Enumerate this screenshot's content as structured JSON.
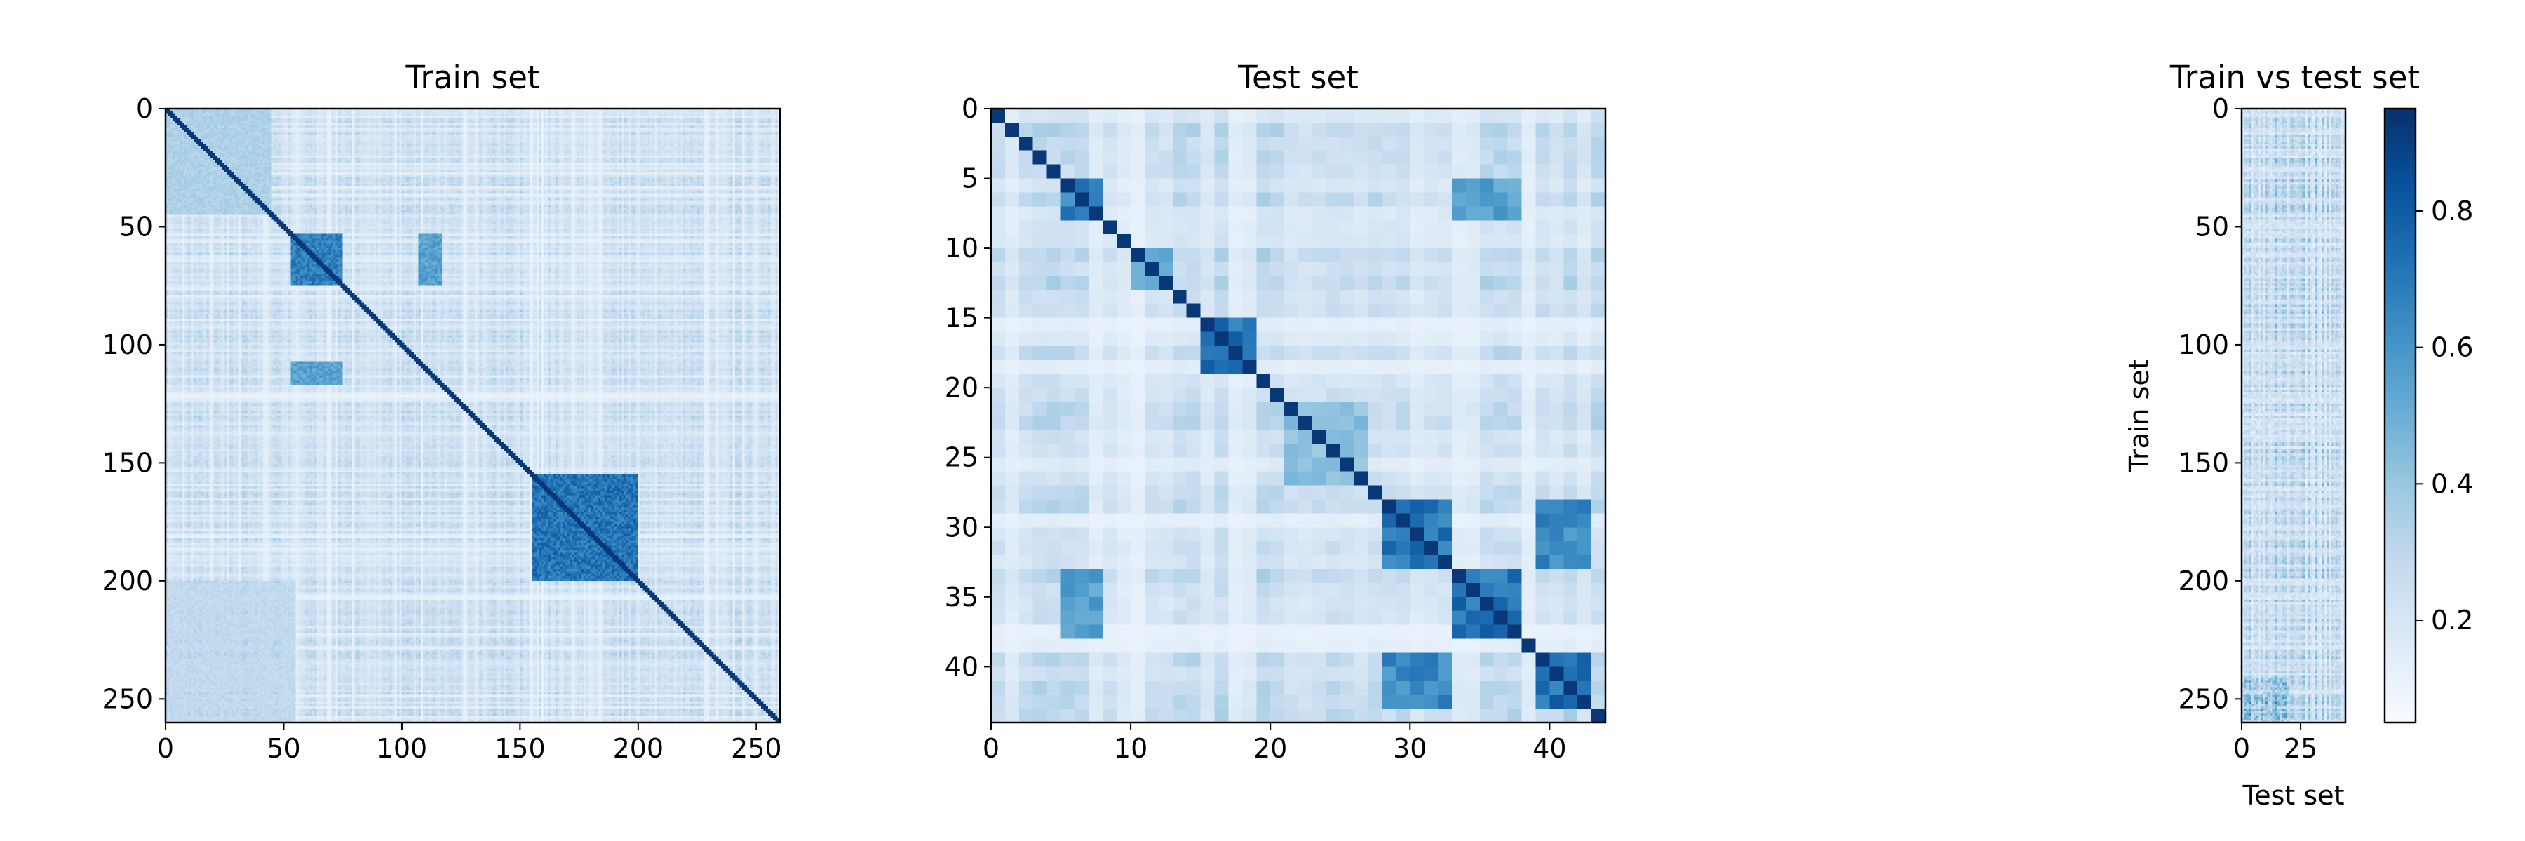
{
  "chart_data": [
    {
      "type": "heatmap",
      "title": "Train set",
      "xlabel": "",
      "ylabel": "",
      "n_rows": 260,
      "n_cols": 260,
      "xlim": [
        0,
        260
      ],
      "ylim": [
        260,
        0
      ],
      "xticks": [
        0,
        50,
        100,
        150,
        200,
        250
      ],
      "yticks": [
        0,
        50,
        100,
        150,
        200,
        250
      ],
      "colormap": "Blues",
      "blocks": [
        {
          "rows": [
            53,
            75
          ],
          "cols": [
            53,
            75
          ],
          "level": 0.75
        },
        {
          "rows": [
            53,
            75
          ],
          "cols": [
            107,
            117
          ],
          "level": 0.6
        },
        {
          "rows": [
            107,
            117
          ],
          "cols": [
            53,
            75
          ],
          "level": 0.6
        },
        {
          "rows": [
            155,
            200
          ],
          "cols": [
            155,
            200
          ],
          "level": 0.8
        },
        {
          "rows": [
            0,
            45
          ],
          "cols": [
            0,
            45
          ],
          "level": 0.35
        },
        {
          "rows": [
            200,
            260
          ],
          "cols": [
            0,
            55
          ],
          "level": 0.28
        }
      ]
    },
    {
      "type": "heatmap",
      "title": "Test set",
      "xlabel": "",
      "ylabel": "",
      "n_rows": 44,
      "n_cols": 44,
      "xlim": [
        0,
        44
      ],
      "ylim": [
        44,
        0
      ],
      "xticks": [
        0,
        10,
        20,
        30,
        40
      ],
      "yticks": [
        0,
        5,
        10,
        15,
        20,
        25,
        30,
        35,
        40
      ],
      "colormap": "Blues",
      "blocks": [
        {
          "rows": [
            5,
            8
          ],
          "cols": [
            5,
            8
          ],
          "level": 0.75
        },
        {
          "rows": [
            10,
            13
          ],
          "cols": [
            10,
            13
          ],
          "level": 0.6
        },
        {
          "rows": [
            15,
            19
          ],
          "cols": [
            15,
            19
          ],
          "level": 0.8
        },
        {
          "rows": [
            28,
            33
          ],
          "cols": [
            28,
            33
          ],
          "level": 0.78
        },
        {
          "rows": [
            28,
            33
          ],
          "cols": [
            39,
            43
          ],
          "level": 0.7
        },
        {
          "rows": [
            39,
            43
          ],
          "cols": [
            28,
            33
          ],
          "level": 0.7
        },
        {
          "rows": [
            33,
            38
          ],
          "cols": [
            33,
            38
          ],
          "level": 0.8
        },
        {
          "rows": [
            39,
            43
          ],
          "cols": [
            39,
            43
          ],
          "level": 0.82
        },
        {
          "rows": [
            5,
            8
          ],
          "cols": [
            33,
            38
          ],
          "level": 0.6
        },
        {
          "rows": [
            33,
            38
          ],
          "cols": [
            5,
            8
          ],
          "level": 0.6
        },
        {
          "rows": [
            21,
            27
          ],
          "cols": [
            21,
            27
          ],
          "level": 0.45
        }
      ]
    },
    {
      "type": "heatmap",
      "title": "Train vs test set",
      "xlabel": "Test set",
      "ylabel": "Train set",
      "n_rows": 260,
      "n_cols": 44,
      "xlim": [
        0,
        44
      ],
      "ylim": [
        260,
        0
      ],
      "xticks": [
        0,
        25
      ],
      "yticks": [
        0,
        50,
        100,
        150,
        200,
        250
      ],
      "colormap": "Blues",
      "colorbar": {
        "min": 0.05,
        "max": 0.95,
        "ticks": [
          0.2,
          0.4,
          0.6,
          0.8
        ]
      }
    }
  ],
  "colors": {
    "low": "#f7fbff",
    "high": "#08306b",
    "axis": "#000000"
  }
}
